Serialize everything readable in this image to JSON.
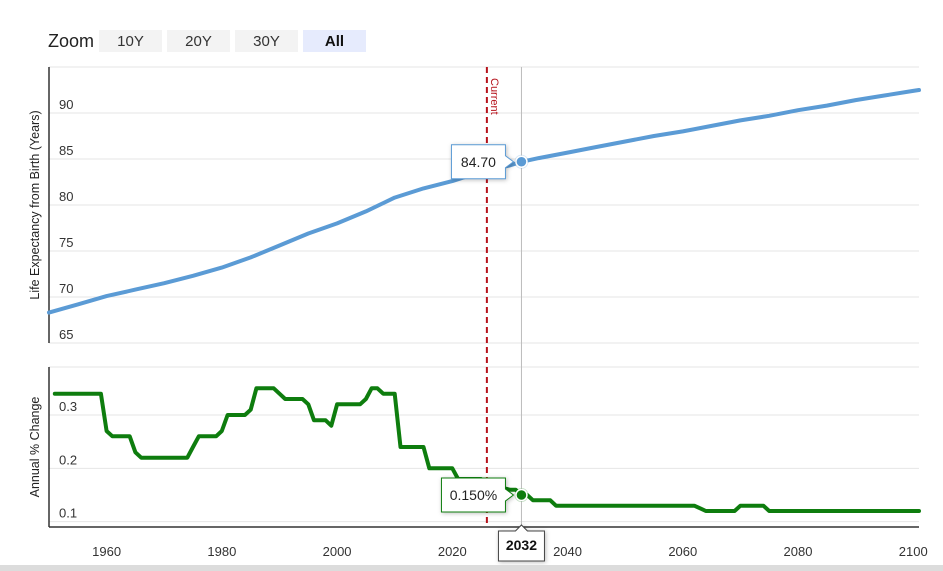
{
  "zoom": {
    "label": "Zoom",
    "buttons": [
      {
        "label": "10Y",
        "active": false
      },
      {
        "label": "20Y",
        "active": false
      },
      {
        "label": "30Y",
        "active": false
      },
      {
        "label": "All",
        "active": true
      }
    ]
  },
  "chart_data": {
    "type": "line",
    "xlim": [
      1950,
      2101
    ],
    "x_ticks": [
      1960,
      1980,
      2000,
      2020,
      2040,
      2060,
      2080,
      2100
    ],
    "current_marker": {
      "x": 2026,
      "label": "Current"
    },
    "hover": {
      "x": 2032,
      "x_label": "2032",
      "top_value": "84.70",
      "bottom_value": "0.150%"
    },
    "panels": [
      {
        "name": "life-expectancy",
        "ylabel": "Life Expectancy from Birth (Years)",
        "ylim": [
          65,
          95
        ],
        "y_ticks": [
          65,
          70,
          75,
          80,
          85,
          90
        ],
        "color": "#5b9bd5",
        "series": [
          {
            "x": [
              1950,
              1955,
              1960,
              1965,
              1970,
              1975,
              1980,
              1985,
              1990,
              1995,
              2000,
              2005,
              2010,
              2015,
              2020,
              2025,
              2030,
              2032,
              2035,
              2040,
              2045,
              2050,
              2055,
              2060,
              2065,
              2070,
              2075,
              2080,
              2085,
              2090,
              2095,
              2100,
              2101
            ],
            "y": [
              68.3,
              69.2,
              70.1,
              70.8,
              71.5,
              72.3,
              73.2,
              74.3,
              75.6,
              76.9,
              78.0,
              79.3,
              80.8,
              81.8,
              82.6,
              83.6,
              84.3,
              84.7,
              85.1,
              85.7,
              86.3,
              86.9,
              87.5,
              88.0,
              88.6,
              89.2,
              89.7,
              90.3,
              90.8,
              91.4,
              91.9,
              92.4,
              92.5
            ]
          }
        ]
      },
      {
        "name": "annual-change",
        "ylabel": "Annual % Change",
        "ylim": [
          0.09,
          0.39
        ],
        "y_ticks": [
          0.1,
          0.2,
          0.3
        ],
        "color": "#0e7d0e",
        "series": [
          {
            "x": [
              1951,
              1958,
              1959,
              1960,
              1961,
              1963,
              1964,
              1965,
              1966,
              1967,
              1974,
              1975,
              1976,
              1979,
              1980,
              1981,
              1984,
              1985,
              1986,
              1989,
              1990,
              1991,
              1994,
              1995,
              1996,
              1998,
              1999,
              2000,
              2004,
              2005,
              2006,
              2007,
              2008,
              2010,
              2011,
              2015,
              2016,
              2020,
              2021,
              2025,
              2026,
              2030,
              2031,
              2032,
              2033,
              2034,
              2037,
              2038,
              2062,
              2063,
              2064,
              2069,
              2070,
              2074,
              2075,
              2101
            ],
            "y": [
              0.34,
              0.34,
              0.34,
              0.27,
              0.26,
              0.26,
              0.26,
              0.23,
              0.22,
              0.22,
              0.22,
              0.24,
              0.26,
              0.26,
              0.27,
              0.3,
              0.3,
              0.31,
              0.35,
              0.35,
              0.34,
              0.33,
              0.33,
              0.32,
              0.29,
              0.29,
              0.28,
              0.32,
              0.32,
              0.33,
              0.35,
              0.35,
              0.34,
              0.34,
              0.24,
              0.24,
              0.2,
              0.2,
              0.18,
              0.18,
              0.17,
              0.16,
              0.16,
              0.15,
              0.15,
              0.14,
              0.14,
              0.13,
              0.13,
              0.125,
              0.12,
              0.12,
              0.13,
              0.13,
              0.12,
              0.12
            ]
          }
        ]
      }
    ]
  }
}
